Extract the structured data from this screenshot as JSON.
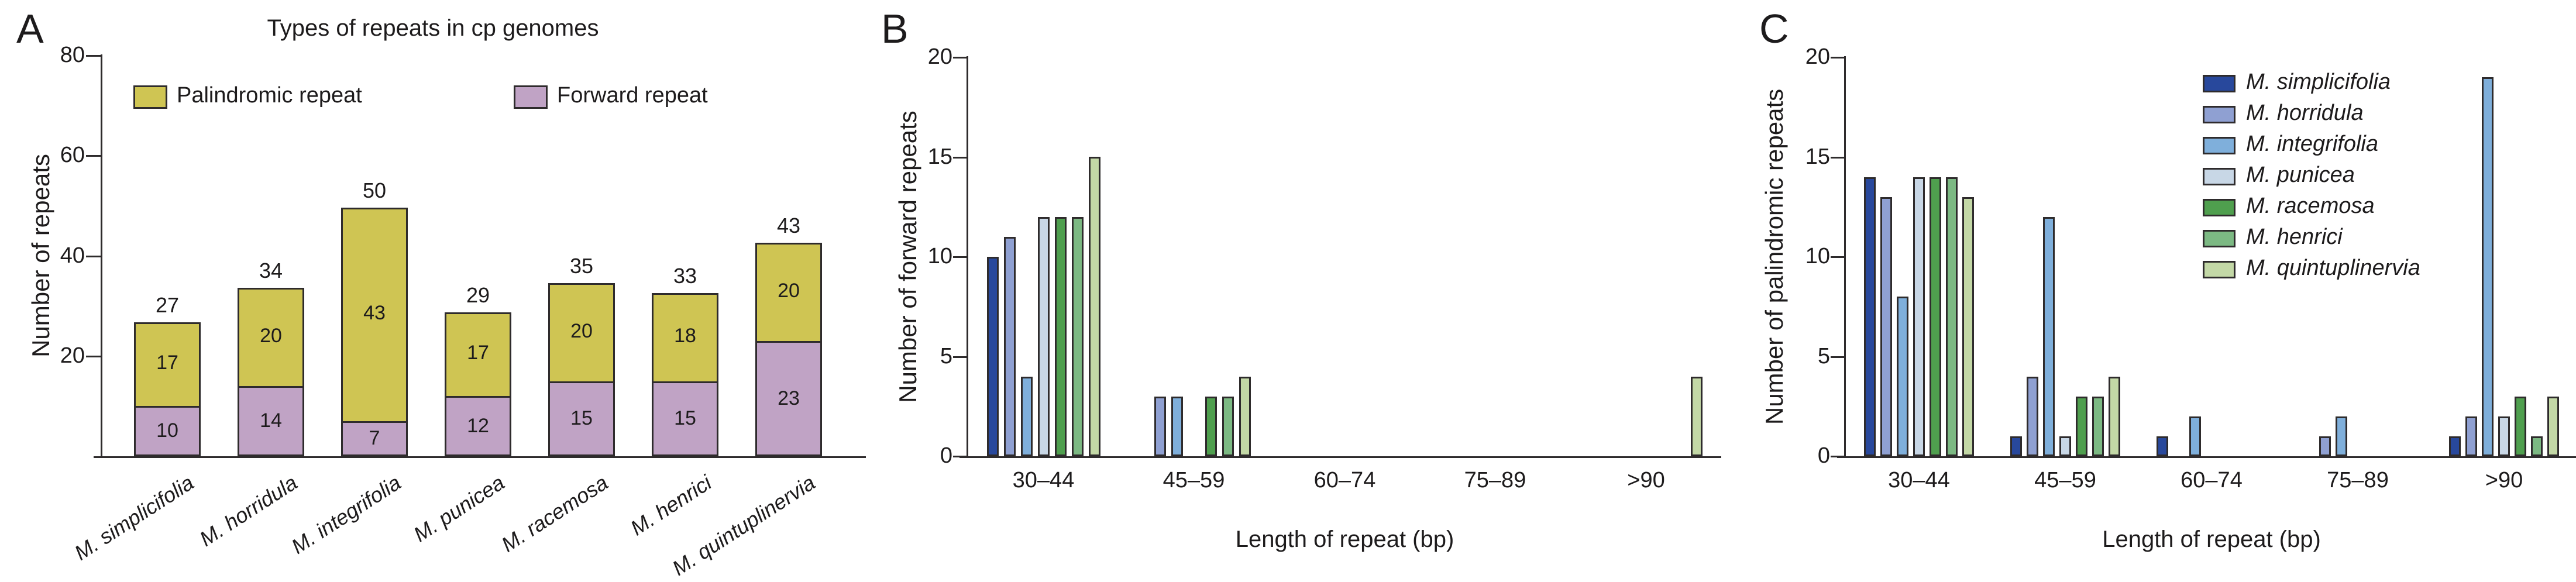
{
  "chart_data": [
    {
      "panel": "A",
      "type": "bar",
      "stacked": true,
      "title": "Types of repeats in cp genomes",
      "ylabel": "Number of repeats",
      "ylim": [
        0,
        80
      ],
      "yticks": [
        20,
        40,
        60,
        80
      ],
      "grid": false,
      "categories": [
        "M. simplicifolia",
        "M. horridula",
        "M. integrifolia",
        "M. punicea",
        "M. racemosa",
        "M. henrici",
        "M. quintuplinervia"
      ],
      "series": [
        {
          "name": "Forward repeat",
          "color": "#c0a3c5",
          "values": [
            10,
            14,
            7,
            12,
            15,
            15,
            23
          ]
        },
        {
          "name": "Palindromic repeat",
          "color": "#cfc553",
          "values": [
            17,
            20,
            43,
            17,
            20,
            18,
            20
          ]
        }
      ],
      "totals": [
        27,
        34,
        50,
        29,
        35,
        33,
        43
      ],
      "legend": [
        {
          "label": "Palindromic repeat",
          "color": "#cfc553"
        },
        {
          "label": "Forward repeat",
          "color": "#c0a3c5"
        }
      ],
      "legend_position": "top-inside"
    },
    {
      "panel": "B",
      "type": "bar",
      "grouped": true,
      "ylabel": "Number of forward repeats",
      "xlabel": "Length of repeat (bp)",
      "ylim": [
        0,
        20
      ],
      "yticks": [
        0,
        5,
        10,
        15,
        20
      ],
      "grid": false,
      "categories": [
        "30–44",
        "45–59",
        "60–74",
        "75–89",
        ">90"
      ],
      "series": [
        {
          "name": "M. simplicifolia",
          "color": "#28489c",
          "values": [
            10,
            0,
            0,
            0,
            0
          ]
        },
        {
          "name": "M. horridula",
          "color": "#8fa0d2",
          "values": [
            11,
            3,
            0,
            0,
            0
          ]
        },
        {
          "name": "M. integrifolia",
          "color": "#7fafdb",
          "values": [
            4,
            3,
            0,
            0,
            0
          ]
        },
        {
          "name": "M. punicea",
          "color": "#c8d7e6",
          "values": [
            12,
            0,
            0,
            0,
            0
          ]
        },
        {
          "name": "M. racemosa",
          "color": "#4f9f4e",
          "values": [
            12,
            3,
            0,
            0,
            0
          ]
        },
        {
          "name": "M. henrici",
          "color": "#7cb983",
          "values": [
            12,
            3,
            0,
            0,
            0
          ]
        },
        {
          "name": "M. quintuplinervia",
          "color": "#c3d8a6",
          "values": [
            15,
            4,
            0,
            0,
            4
          ]
        }
      ],
      "legend_position": "none"
    },
    {
      "panel": "C",
      "type": "bar",
      "grouped": true,
      "ylabel": "Number of palindromic repeats",
      "xlabel": "Length of repeat (bp)",
      "ylim": [
        0,
        20
      ],
      "yticks": [
        0,
        5,
        10,
        15,
        20
      ],
      "grid": false,
      "categories": [
        "30–44",
        "45–59",
        "60–74",
        "75–89",
        ">90"
      ],
      "series": [
        {
          "name": "M. simplicifolia",
          "color": "#28489c",
          "values": [
            14,
            1,
            1,
            0,
            1
          ]
        },
        {
          "name": "M. horridula",
          "color": "#8fa0d2",
          "values": [
            13,
            4,
            0,
            1,
            2
          ]
        },
        {
          "name": "M. integrifolia",
          "color": "#7fafdb",
          "values": [
            8,
            12,
            2,
            2,
            19
          ]
        },
        {
          "name": "M. punicea",
          "color": "#c8d7e6",
          "values": [
            14,
            1,
            0,
            0,
            2
          ]
        },
        {
          "name": "M. racemosa",
          "color": "#4f9f4e",
          "values": [
            14,
            3,
            0,
            0,
            3
          ]
        },
        {
          "name": "M. henrici",
          "color": "#7cb983",
          "values": [
            14,
            3,
            0,
            0,
            1
          ]
        },
        {
          "name": "M. quintuplinervia",
          "color": "#c3d8a6",
          "values": [
            13,
            4,
            0,
            0,
            3
          ]
        }
      ],
      "legend_position": "top-right-inside"
    }
  ]
}
